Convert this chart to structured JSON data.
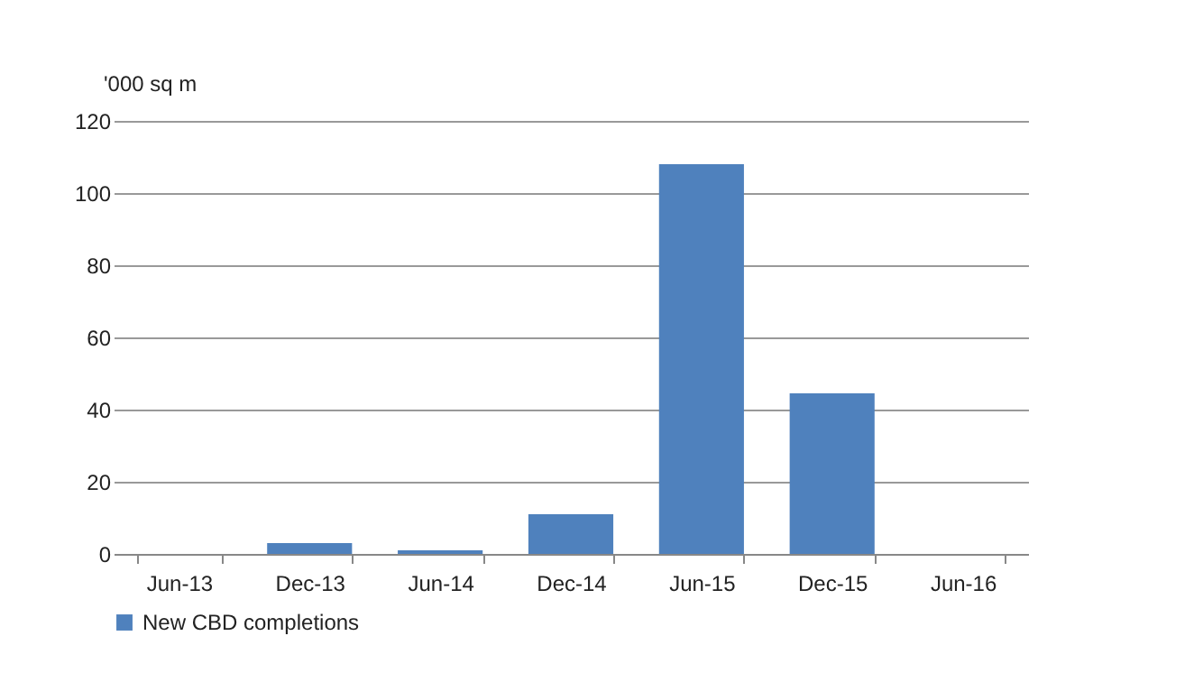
{
  "chart_data": {
    "type": "bar",
    "ylabel": "'000 sq m",
    "categories": [
      "Jun-13",
      "Dec-13",
      "Jun-14",
      "Dec-14",
      "Jun-15",
      "Dec-15",
      "Jun-16"
    ],
    "series": [
      {
        "name": "New CBD completions",
        "color": "#4f81bd",
        "values": [
          0,
          3,
          1,
          11,
          108,
          44.5,
          0
        ]
      }
    ],
    "ylim": [
      0,
      120
    ],
    "yticks": [
      0,
      20,
      40,
      60,
      80,
      100,
      120
    ],
    "grid": "y",
    "legend": "bottom"
  }
}
